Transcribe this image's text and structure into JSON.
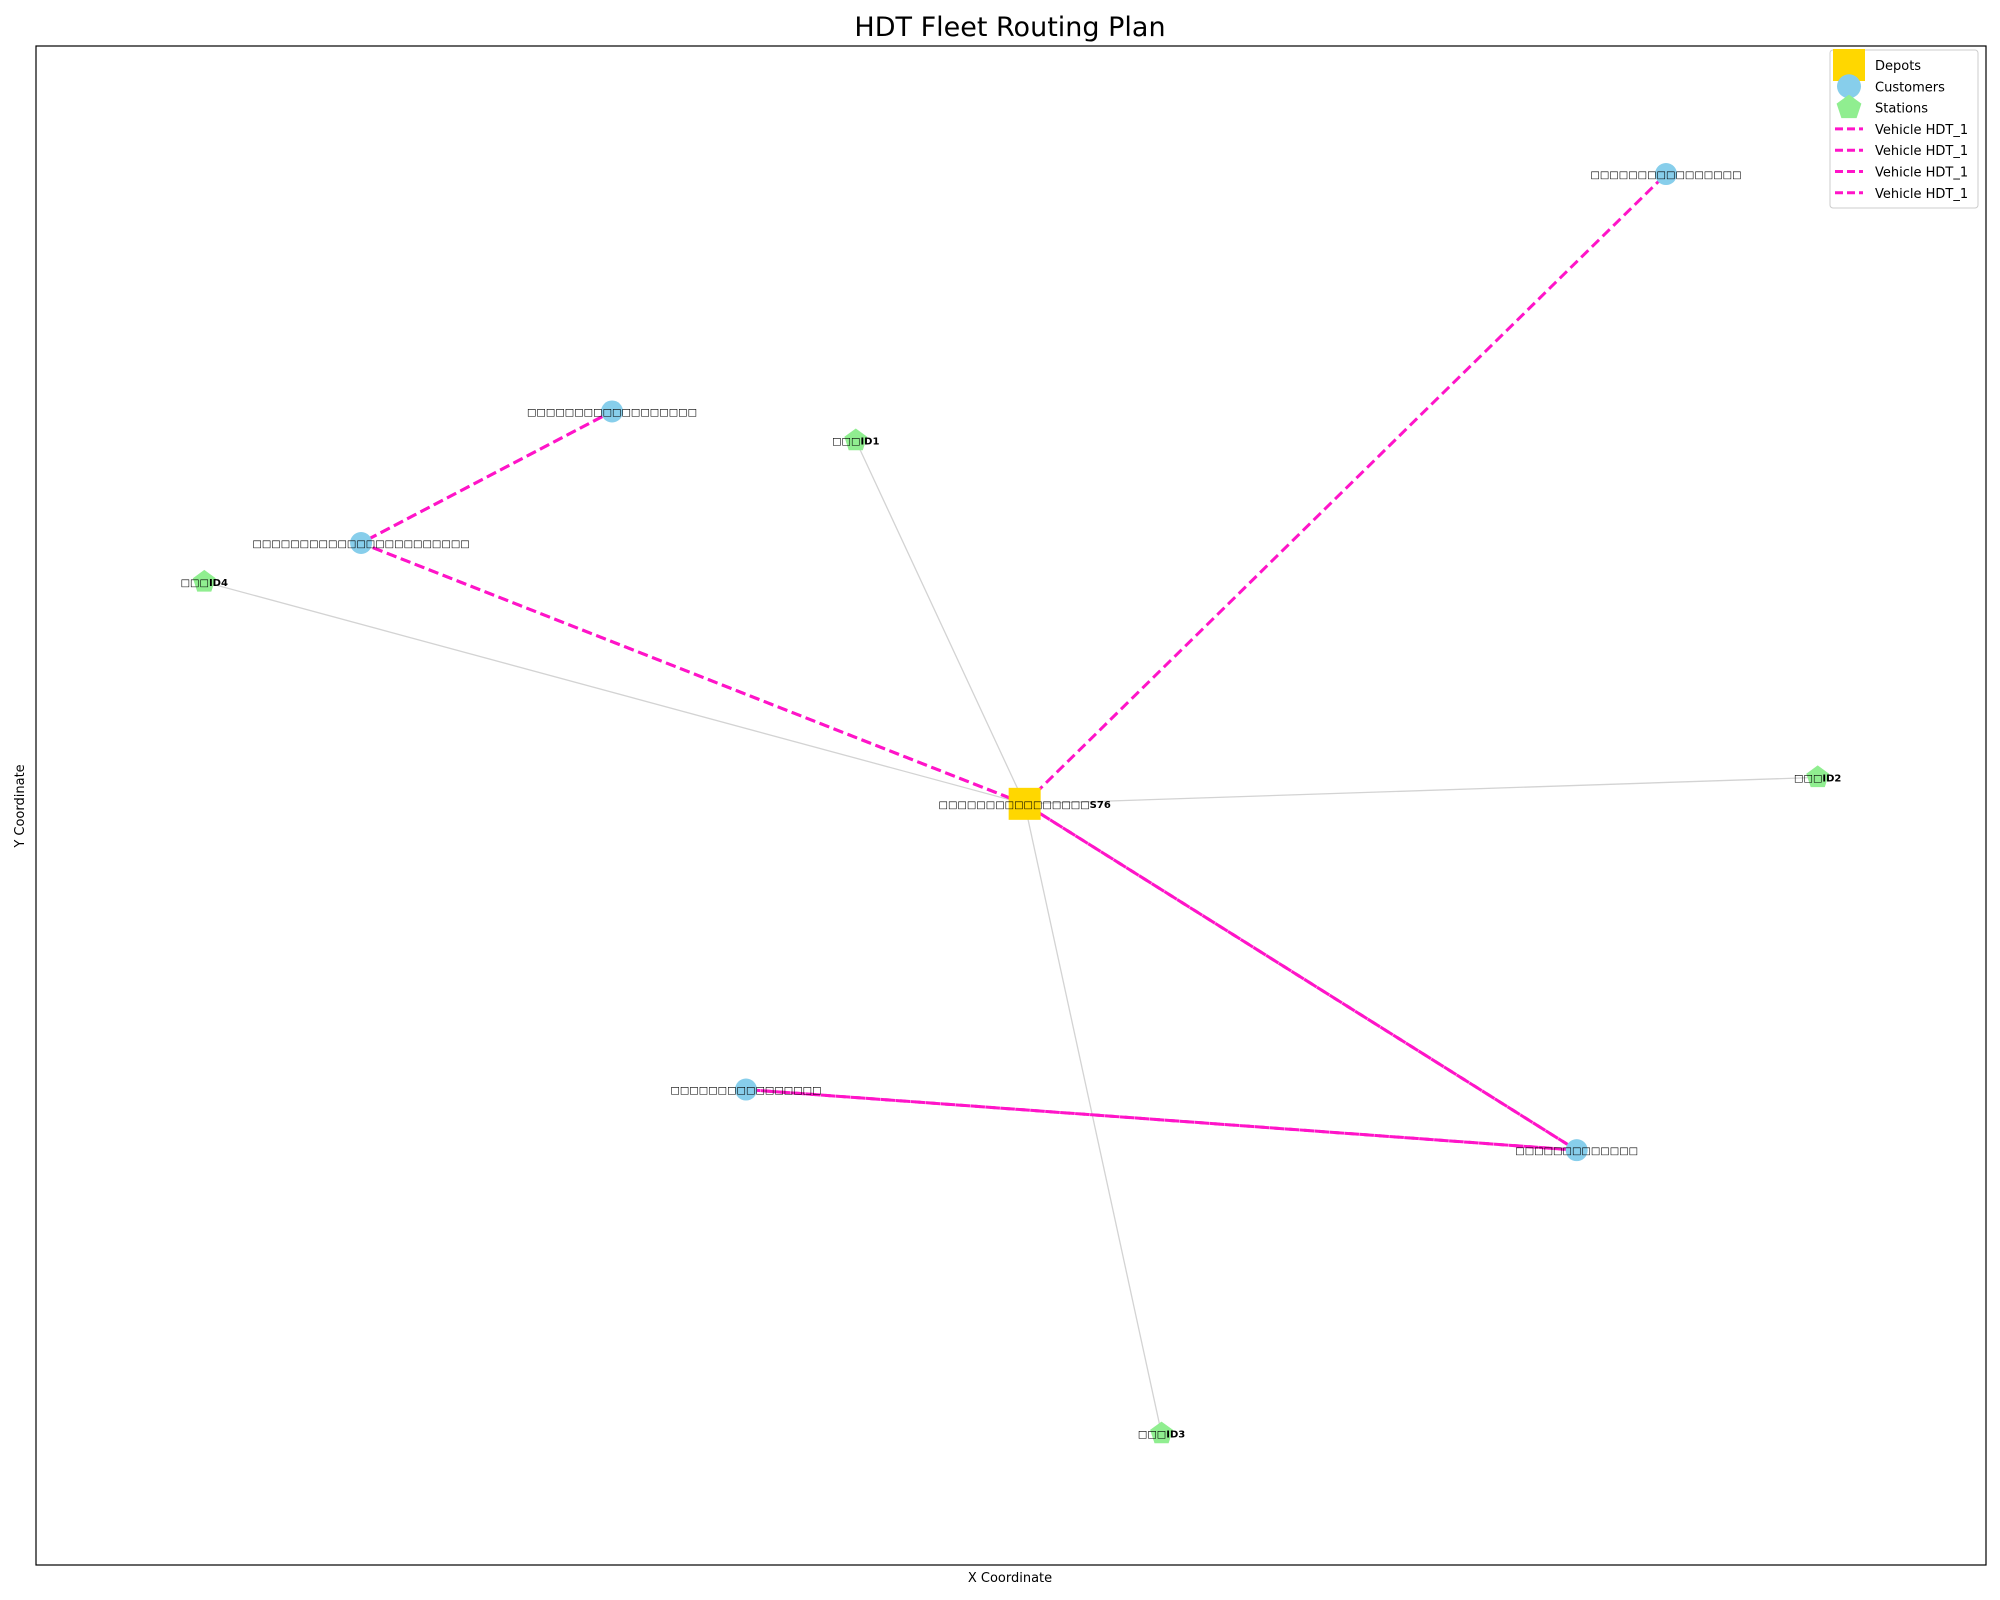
{
  "chart_data": {
    "type": "scatter",
    "title": "HDT Fleet Routing Plan",
    "xlabel": "X Coordinate",
    "ylabel": "Y Coordinate",
    "xlim": [
      0,
      1000
    ],
    "ylim": [
      0,
      1000
    ],
    "ticks_shown": false,
    "grid": false,
    "legend_position": "top-right",
    "legend": [
      {
        "label": "Depots",
        "marker": "square",
        "color": "#FFD700"
      },
      {
        "label": "Customers",
        "marker": "circle",
        "color": "#87CEEB"
      },
      {
        "label": "Stations",
        "marker": "pentagon",
        "color": "#90EE90"
      },
      {
        "label": "Vehicle HDT_1",
        "marker": "dashed-line",
        "color": "#FF14C8"
      },
      {
        "label": "Vehicle HDT_1",
        "marker": "dashed-line",
        "color": "#FF14C8"
      },
      {
        "label": "Vehicle HDT_1",
        "marker": "dashed-line",
        "color": "#FF14C8"
      },
      {
        "label": "Vehicle HDT_1",
        "marker": "dashed-line",
        "color": "#FF14C8"
      }
    ],
    "depots": [
      {
        "id": "depot",
        "label": "□□□□□□□□□□□□□□□□S76",
        "x": 507.0,
        "y": 501.1
      }
    ],
    "customers": [
      {
        "id": "c1",
        "label": "□□□□□□□□□□□□□□□□",
        "x": 835.9,
        "y": 915.7
      },
      {
        "id": "c2",
        "label": "□□□□□□□□□□□□□□□□□□",
        "x": 295.4,
        "y": 759.4
      },
      {
        "id": "c3",
        "label": "□□□□□□□□□□□□□□□□□□□□□□□",
        "x": 166.7,
        "y": 672.8
      },
      {
        "id": "c4",
        "label": "□□□□□□□□□□□□□□□□",
        "x": 364.1,
        "y": 313.0
      },
      {
        "id": "c5",
        "label": "□□□□□□□□□□□□□",
        "x": 790.1,
        "y": 273.1
      }
    ],
    "stations": [
      {
        "id": "s1",
        "label": "□□□ID1",
        "x": 420.4,
        "y": 740.3
      },
      {
        "id": "s2",
        "label": "□□□ID2",
        "x": 913.7,
        "y": 518.5
      },
      {
        "id": "s3",
        "label": "□□□ID3",
        "x": 577.2,
        "y": 86.5
      },
      {
        "id": "s4",
        "label": "□□□ID4",
        "x": 86.3,
        "y": 647.2
      }
    ],
    "station_links": [
      {
        "from": "depot",
        "to": "s1"
      },
      {
        "from": "depot",
        "to": "s2"
      },
      {
        "from": "depot",
        "to": "s3"
      },
      {
        "from": "depot",
        "to": "s4"
      }
    ],
    "series": [
      {
        "name": "Vehicle HDT_1",
        "color": "#FF14C8",
        "style": "dashed",
        "path": [
          "depot",
          "c1"
        ]
      },
      {
        "name": "Vehicle HDT_1",
        "color": "#FF14C8",
        "style": "dashed",
        "path": [
          "depot",
          "c3",
          "c2"
        ]
      },
      {
        "name": "Vehicle HDT_1",
        "color": "#FF14C8",
        "style": "dashed",
        "path": [
          "depot",
          "c5",
          "c4"
        ]
      },
      {
        "name": "Vehicle HDT_1",
        "color": "#FF14C8",
        "style": "dashed",
        "path": [
          "c4",
          "c5",
          "depot",
          "c3",
          "c2"
        ]
      }
    ]
  }
}
